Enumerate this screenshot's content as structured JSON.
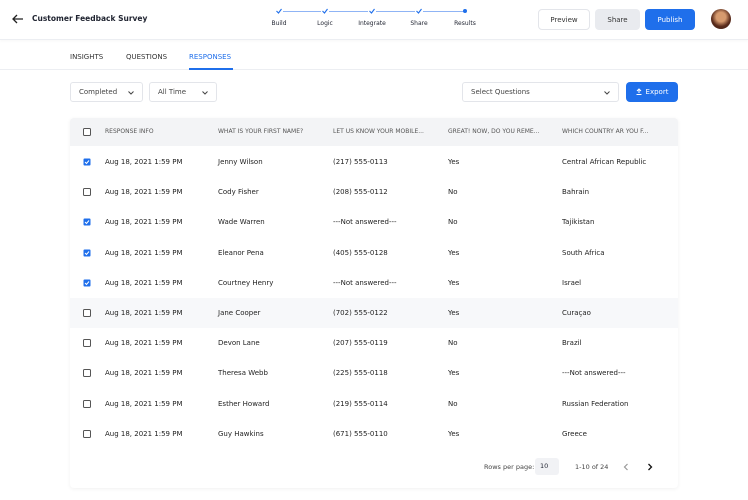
{
  "header": {
    "title": "Customer Feedback Survey",
    "steps": [
      "Build",
      "Logic",
      "Integrate",
      "Share",
      "Results"
    ],
    "buttons": [
      "Preview",
      "Share",
      "Publish"
    ]
  },
  "tabs": {
    "items": [
      "INSIGHTS",
      "QUESTIONS",
      "RESPONSES"
    ],
    "active": 2
  },
  "filters": {
    "status": "Completed",
    "period": "All Time",
    "questions": "Select Questions",
    "export": "Export"
  },
  "table": {
    "headers": [
      "RESPONSE INFO",
      "WHAT IS YOUR FIRST NAME?",
      "LET US KNOW YOUR MOBILE...",
      "GREAT! NOW, DO YOU REME...",
      "WHICH COUNTRY AR YOU F..."
    ],
    "rows": [
      {
        "checked": true,
        "cells": [
          "Aug 18, 2021 1:59 PM",
          "Jenny Wilson",
          "(217) 555-0113",
          "Yes",
          "Central African Republic"
        ]
      },
      {
        "checked": false,
        "cells": [
          "Aug 18, 2021 1:59 PM",
          "Cody Fisher",
          "(208) 555-0112",
          "No",
          "Bahrain"
        ]
      },
      {
        "checked": true,
        "cells": [
          "Aug 18, 2021 1:59 PM",
          "Wade Warren",
          "---Not answered---",
          "No",
          "Tajikistan"
        ]
      },
      {
        "checked": true,
        "cells": [
          "Aug 18, 2021 1:59 PM",
          "Eleanor Pena",
          "(405) 555-0128",
          "Yes",
          "South Africa"
        ]
      },
      {
        "checked": true,
        "cells": [
          "Aug 18, 2021 1:59 PM",
          "Courtney Henry",
          "---Not answered---",
          "Yes",
          "Israel"
        ]
      },
      {
        "checked": false,
        "cells": [
          "Aug 18, 2021 1:59 PM",
          "Jane Cooper",
          "(702) 555-0122",
          "Yes",
          "Curaçao"
        ]
      },
      {
        "checked": false,
        "cells": [
          "Aug 18, 2021 1:59 PM",
          "Devon Lane",
          "(207) 555-0119",
          "No",
          "Brazil"
        ]
      },
      {
        "checked": false,
        "cells": [
          "Aug 18, 2021 1:59 PM",
          "Theresa Webb",
          "(225) 555-0118",
          "Yes",
          "---Not answered---"
        ]
      },
      {
        "checked": false,
        "cells": [
          "Aug 18, 2021 1:59 PM",
          "Esther Howard",
          "(219) 555-0114",
          "No",
          "Russian Federation"
        ]
      },
      {
        "checked": false,
        "cells": [
          "Aug 18, 2021 1:59 PM",
          "Guy Hawkins",
          "(671) 555-0110",
          "Yes",
          "Greece"
        ]
      }
    ]
  },
  "pagination": {
    "rows_per_page_label": "Rows per page:",
    "rows_per_page": "10",
    "range": "1-10 of 24"
  }
}
